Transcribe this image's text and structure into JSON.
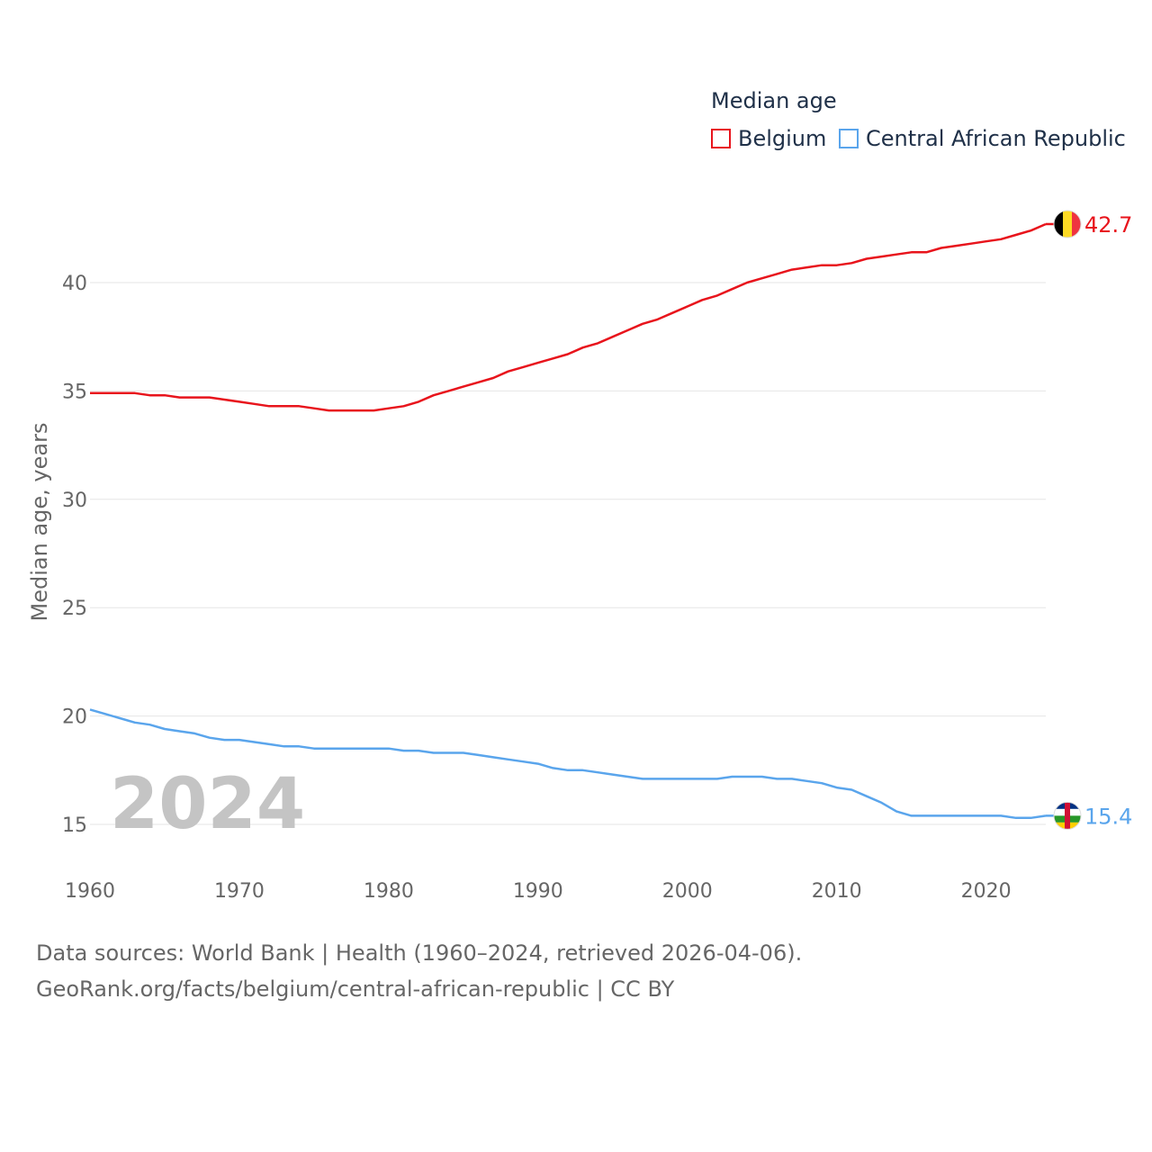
{
  "chart_data": {
    "type": "line",
    "legend_title": "Median age",
    "legend_position": "top-right",
    "ylabel": "Median age, years",
    "xlabel": "",
    "xlim": [
      1960,
      2024
    ],
    "ylim": [
      13,
      45
    ],
    "x_ticks": [
      1960,
      1970,
      1980,
      1990,
      2000,
      2010,
      2020
    ],
    "y_ticks": [
      15,
      20,
      25,
      30,
      35,
      40
    ],
    "grid": true,
    "year_watermark": "2024",
    "x": [
      1960,
      1961,
      1962,
      1963,
      1964,
      1965,
      1966,
      1967,
      1968,
      1969,
      1970,
      1971,
      1972,
      1973,
      1974,
      1975,
      1976,
      1977,
      1978,
      1979,
      1980,
      1981,
      1982,
      1983,
      1984,
      1985,
      1986,
      1987,
      1988,
      1989,
      1990,
      1991,
      1992,
      1993,
      1994,
      1995,
      1996,
      1997,
      1998,
      1999,
      2000,
      2001,
      2002,
      2003,
      2004,
      2005,
      2006,
      2007,
      2008,
      2009,
      2010,
      2011,
      2012,
      2013,
      2014,
      2015,
      2016,
      2017,
      2018,
      2019,
      2020,
      2021,
      2022,
      2023,
      2024
    ],
    "series": [
      {
        "name": "Belgium",
        "color": "#e8141c",
        "end_label": "42.7",
        "flag": "belgium-flag",
        "values": [
          34.9,
          34.9,
          34.9,
          34.9,
          34.8,
          34.8,
          34.7,
          34.7,
          34.7,
          34.6,
          34.5,
          34.4,
          34.3,
          34.3,
          34.3,
          34.2,
          34.1,
          34.1,
          34.1,
          34.1,
          34.2,
          34.3,
          34.5,
          34.8,
          35.0,
          35.2,
          35.4,
          35.6,
          35.9,
          36.1,
          36.3,
          36.5,
          36.7,
          37.0,
          37.2,
          37.5,
          37.8,
          38.1,
          38.3,
          38.6,
          38.9,
          39.2,
          39.4,
          39.7,
          40.0,
          40.2,
          40.4,
          40.6,
          40.7,
          40.8,
          40.8,
          40.9,
          41.1,
          41.2,
          41.3,
          41.4,
          41.4,
          41.6,
          41.7,
          41.8,
          41.9,
          42.0,
          42.2,
          42.4,
          42.7
        ]
      },
      {
        "name": "Central African Republic",
        "color": "#5aa5ec",
        "end_label": "15.4",
        "flag": "central-african-republic-flag",
        "values": [
          20.3,
          20.1,
          19.9,
          19.7,
          19.6,
          19.4,
          19.3,
          19.2,
          19.0,
          18.9,
          18.9,
          18.8,
          18.7,
          18.6,
          18.6,
          18.5,
          18.5,
          18.5,
          18.5,
          18.5,
          18.5,
          18.4,
          18.4,
          18.3,
          18.3,
          18.3,
          18.2,
          18.1,
          18.0,
          17.9,
          17.8,
          17.6,
          17.5,
          17.5,
          17.4,
          17.3,
          17.2,
          17.1,
          17.1,
          17.1,
          17.1,
          17.1,
          17.1,
          17.2,
          17.2,
          17.2,
          17.1,
          17.1,
          17.0,
          16.9,
          16.7,
          16.6,
          16.3,
          16.0,
          15.6,
          15.4,
          15.4,
          15.4,
          15.4,
          15.4,
          15.4,
          15.4,
          15.3,
          15.3,
          15.4
        ]
      }
    ]
  },
  "source": {
    "line1": "Data sources: World Bank | Health (1960–2024, retrieved 2026-04-06).",
    "line2": "GeoRank.org/facts/belgium/central-african-republic | CC BY"
  }
}
